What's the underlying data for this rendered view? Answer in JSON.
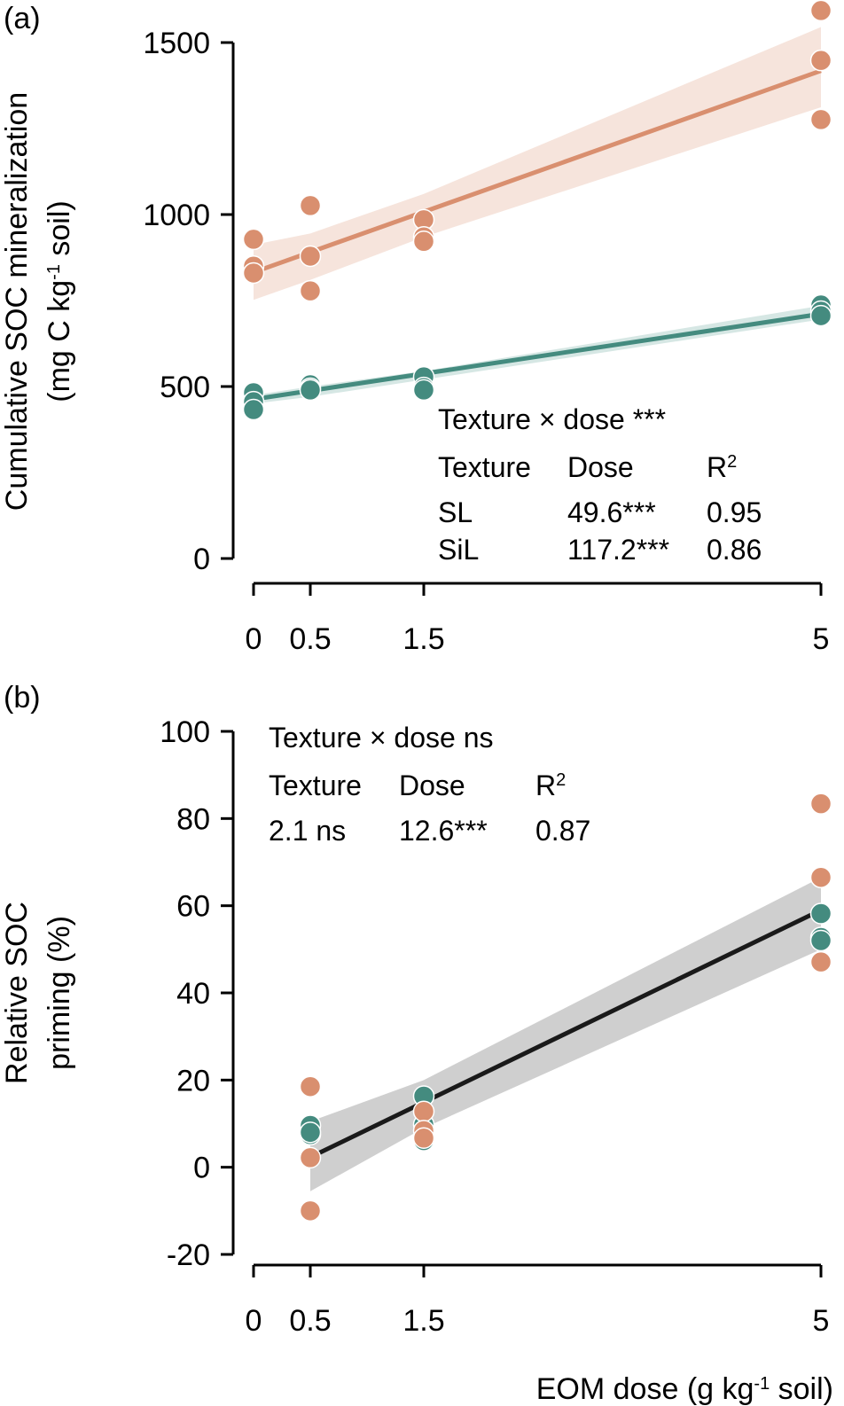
{
  "colors": {
    "SL": "#448b7f",
    "SiL": "#d98f6f",
    "SL_band": "#d6e7e4",
    "SiL_band": "#f6e4dc",
    "pooled_line": "#1a1a1a",
    "pooled_band": "#cfcfcf",
    "axis": "#000000"
  },
  "chart_data": [
    {
      "panel_label": "(a)",
      "type": "scatter",
      "title": "",
      "xlabel": "",
      "ylabel_line1": "Cumulative SOC mineralization",
      "ylabel_line2_pre": "(mg C kg",
      "ylabel_line2_sup": "-1",
      "ylabel_line2_post": " soil)",
      "xlim": [
        0,
        5
      ],
      "ylim": [
        0,
        1500
      ],
      "xticks": [
        0,
        0.5,
        1.5,
        5
      ],
      "xtick_labels": [
        "0",
        "0.5",
        "1.5",
        "5"
      ],
      "yticks": [
        0,
        500,
        1000,
        1500
      ],
      "ytick_labels": [
        "0",
        "500",
        "1000",
        "1500"
      ],
      "grid": false,
      "series": [
        {
          "name": "SL",
          "points": [
            [
              0,
              482
            ],
            [
              0,
              456
            ],
            [
              0,
              433
            ],
            [
              0.5,
              505
            ],
            [
              0.5,
              495
            ],
            [
              0.5,
              490
            ],
            [
              1.5,
              528
            ],
            [
              1.5,
              497
            ],
            [
              1.5,
              490
            ],
            [
              5,
              737
            ],
            [
              5,
              719
            ],
            [
              5,
              706
            ]
          ],
          "fit": {
            "intercept": 463,
            "slope": 49.6
          },
          "ci": {
            "lower": [
              450,
              470,
              520,
              695
            ],
            "upper": [
              475,
              500,
              545,
              735
            ],
            "x": [
              0,
              0.5,
              1.5,
              5
            ]
          }
        },
        {
          "name": "SiL",
          "points": [
            [
              0,
              928
            ],
            [
              0,
              850
            ],
            [
              0,
              830
            ],
            [
              0.5,
              1026
            ],
            [
              0.5,
              879
            ],
            [
              0.5,
              778
            ],
            [
              1.5,
              985
            ],
            [
              1.5,
              935
            ],
            [
              1.5,
              922
            ],
            [
              5,
              1593
            ],
            [
              5,
              1448
            ],
            [
              5,
              1276
            ]
          ],
          "fit": {
            "intercept": 832,
            "slope": 117.2
          },
          "ci": {
            "lower": [
              752,
              810,
              935,
              1312
            ],
            "upper": [
              912,
              945,
              1060,
              1545
            ],
            "x": [
              0,
              0.5,
              1.5,
              5
            ]
          }
        }
      ],
      "annotation": {
        "interaction": "Texture × dose ***",
        "headers": [
          "Texture",
          "Dose",
          "R",
          "2"
        ],
        "rows": [
          {
            "texture": "SL",
            "dose": "49.6***",
            "r2": "0.95"
          },
          {
            "texture": "SiL",
            "dose": "117.2***",
            "r2": "0.86"
          }
        ]
      }
    },
    {
      "panel_label": "(b)",
      "type": "scatter",
      "title": "",
      "xlabel_pre": "EOM dose (g kg",
      "xlabel_sup": "-1",
      "xlabel_post": " soil)",
      "ylabel_line1": "Relative SOC",
      "ylabel_line2": "priming (%)",
      "xlim": [
        0,
        5
      ],
      "ylim": [
        -20,
        100
      ],
      "xticks": [
        0,
        0.5,
        1.5,
        5
      ],
      "xtick_labels": [
        "0",
        "0.5",
        "1.5",
        "5"
      ],
      "yticks": [
        -20,
        0,
        20,
        40,
        60,
        80,
        100
      ],
      "ytick_labels": [
        "-20",
        "0",
        "20",
        "40",
        "60",
        "80",
        "100"
      ],
      "grid": false,
      "series": [
        {
          "name": "SL",
          "points": [
            [
              0.5,
              9.6
            ],
            [
              0.5,
              7.5
            ],
            [
              0.5,
              8.0
            ],
            [
              1.5,
              16.3
            ],
            [
              1.5,
              9.8
            ],
            [
              1.5,
              6.1
            ],
            [
              5,
              58.2
            ],
            [
              5,
              52.7
            ],
            [
              5,
              52.0
            ]
          ]
        },
        {
          "name": "SiL",
          "points": [
            [
              0.5,
              18.5
            ],
            [
              0.5,
              2.2
            ],
            [
              0.5,
              -10.0
            ],
            [
              1.5,
              12.8
            ],
            [
              1.5,
              8.4
            ],
            [
              1.5,
              6.7
            ],
            [
              5,
              83.4
            ],
            [
              5,
              66.5
            ],
            [
              5,
              47.1
            ]
          ]
        }
      ],
      "pooled_fit": {
        "intercept": -4.0,
        "slope": 12.6,
        "x_range": [
          0.5,
          5
        ]
      },
      "pooled_ci": {
        "x": [
          0.5,
          1.5,
          5
        ],
        "lower": [
          -5.5,
          9,
          50
        ],
        "upper": [
          10.5,
          20,
          66.5
        ]
      },
      "annotation": {
        "interaction": "Texture × dose ns",
        "headers": [
          "Texture",
          "Dose",
          "R",
          "2"
        ],
        "values": [
          "2.1 ns",
          "12.6***",
          "0.87"
        ]
      }
    }
  ]
}
